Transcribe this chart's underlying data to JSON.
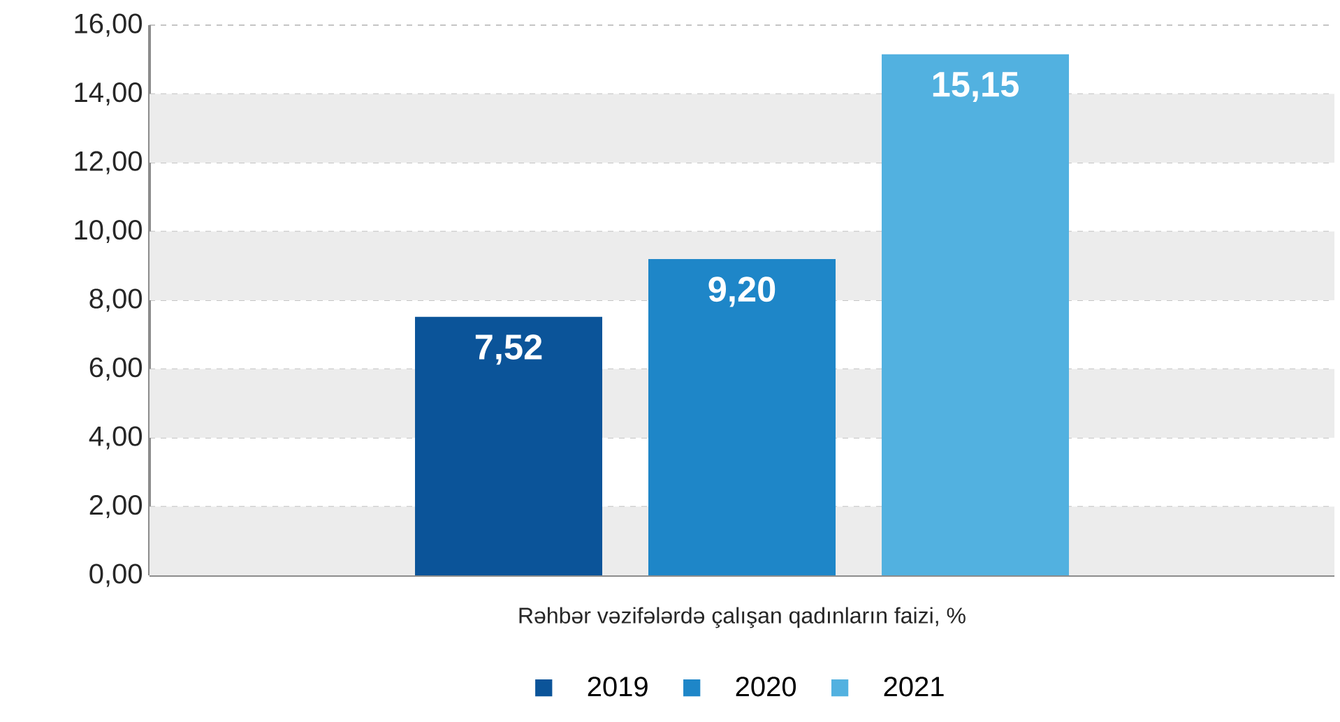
{
  "chart_data": {
    "type": "bar",
    "categories": [
      "Rəhbər vəzifələrdə çalışan qadınların faizi, %"
    ],
    "series": [
      {
        "name": "2019",
        "color": "#0b5499",
        "values": [
          7.52
        ],
        "value_labels": [
          "7,52"
        ]
      },
      {
        "name": "2020",
        "color": "#1e86c8",
        "values": [
          9.2
        ],
        "value_labels": [
          "9,20"
        ]
      },
      {
        "name": "2021",
        "color": "#52b1e0",
        "values": [
          15.15
        ],
        "value_labels": [
          "15,15"
        ]
      }
    ],
    "ylim": [
      0,
      16
    ],
    "yticks": [
      {
        "value": 0,
        "label": "0,00"
      },
      {
        "value": 2,
        "label": "2,00"
      },
      {
        "value": 4,
        "label": "4,00"
      },
      {
        "value": 6,
        "label": "6,00"
      },
      {
        "value": 8,
        "label": "8,00"
      },
      {
        "value": 10,
        "label": "10,00"
      },
      {
        "value": 12,
        "label": "12,00"
      },
      {
        "value": 14,
        "label": "14,00"
      },
      {
        "value": 16,
        "label": "16,00"
      }
    ],
    "grid": "y",
    "legend": "bottom",
    "bands": [
      {
        "axis": "y",
        "from": 0,
        "to": 2,
        "color": "#ececec"
      },
      {
        "axis": "y",
        "from": 4,
        "to": 6,
        "color": "#ececec"
      },
      {
        "axis": "y",
        "from": 8,
        "to": 10,
        "color": "#ececec"
      },
      {
        "axis": "y",
        "from": 12,
        "to": 14,
        "color": "#ececec"
      }
    ]
  }
}
